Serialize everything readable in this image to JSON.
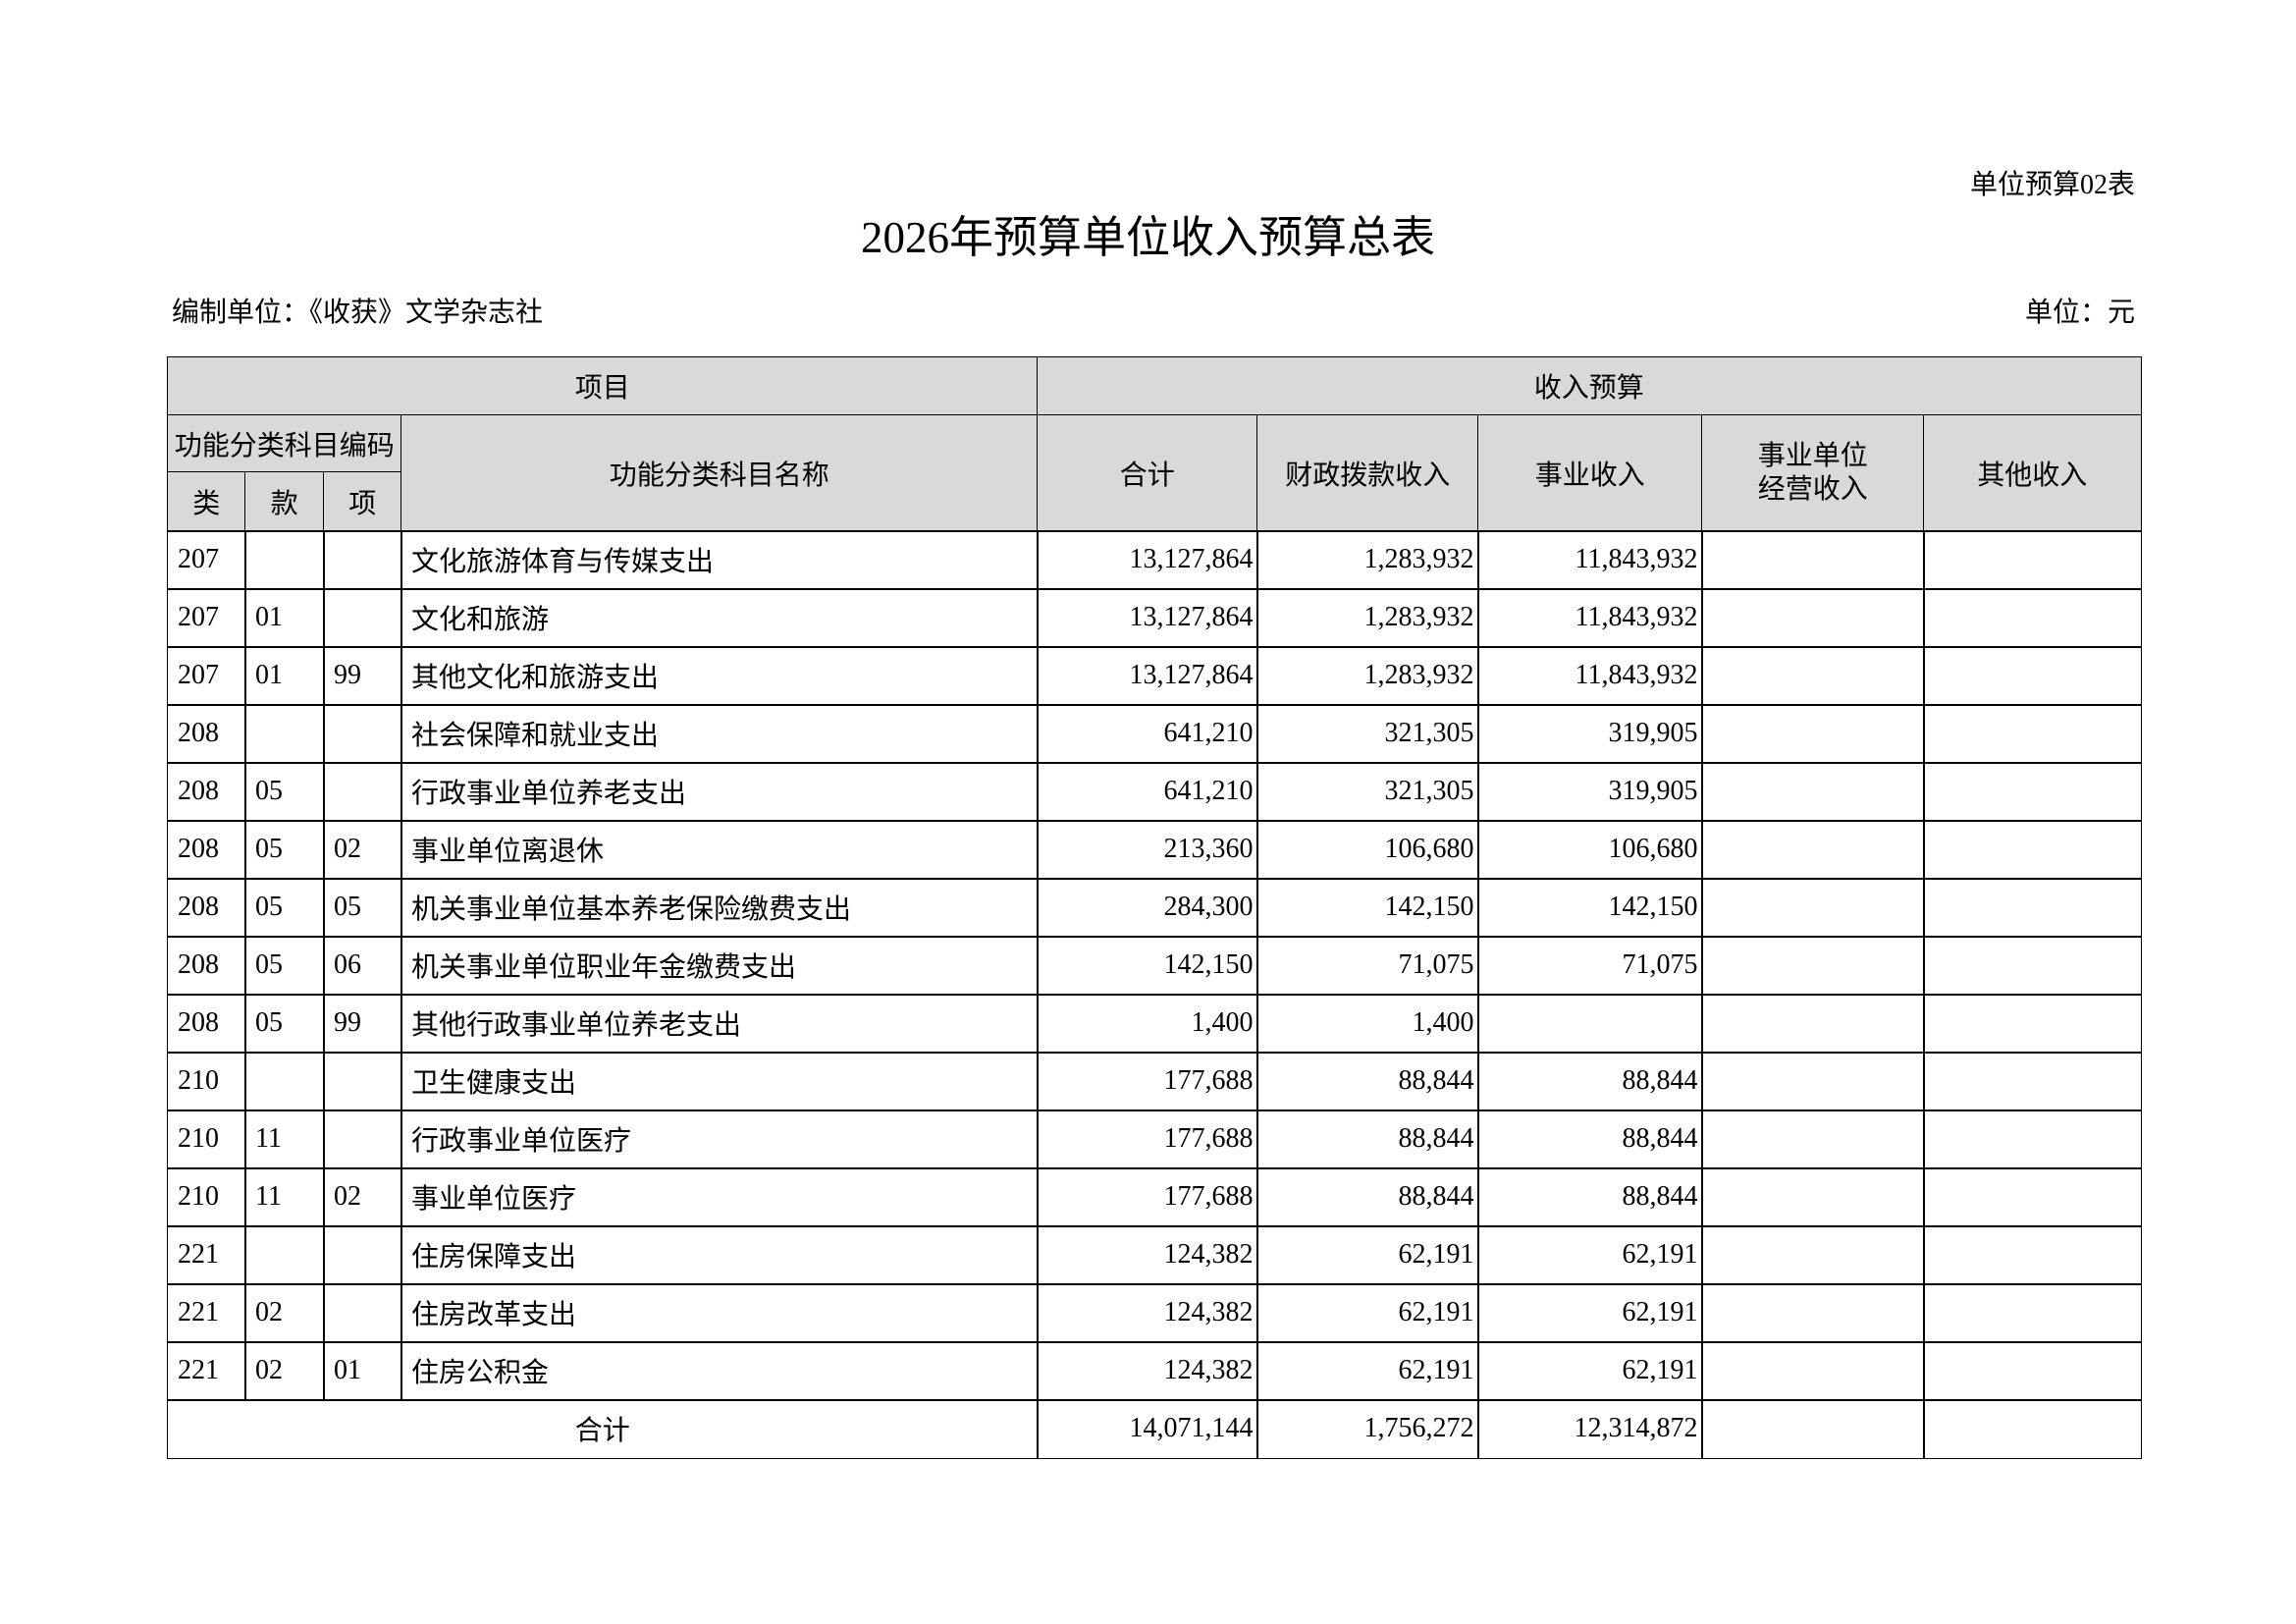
{
  "header": {
    "form_no": "单位预算02表",
    "title": "2026年预算单位收入预算总表",
    "unit_label": "编制单位：《收获》文学杂志社",
    "currency": "单位：元"
  },
  "table": {
    "group_headers": [
      "项目",
      "收入预算"
    ],
    "code_header": "功能分类科目编码",
    "code_columns": [
      "类",
      "款",
      "项"
    ],
    "name_header": "功能分类科目名称",
    "value_headers": [
      "合计",
      "财政拨款收入",
      "事业收入",
      "事业单位经营收入",
      "其他收入"
    ],
    "rows": [
      [
        "207",
        null,
        null,
        "文化旅游体育与传媒支出",
        "13,127,864",
        "1,283,932",
        "11,843,932",
        null,
        null
      ],
      [
        "207",
        "01",
        null,
        "文化和旅游",
        "13,127,864",
        "1,283,932",
        "11,843,932",
        null,
        null
      ],
      [
        "207",
        "01",
        "99",
        "其他文化和旅游支出",
        "13,127,864",
        "1,283,932",
        "11,843,932",
        null,
        null
      ],
      [
        "208",
        null,
        null,
        "社会保障和就业支出",
        "641,210",
        "321,305",
        "319,905",
        null,
        null
      ],
      [
        "208",
        "05",
        null,
        "行政事业单位养老支出",
        "641,210",
        "321,305",
        "319,905",
        null,
        null
      ],
      [
        "208",
        "05",
        "02",
        "事业单位离退休",
        "213,360",
        "106,680",
        "106,680",
        null,
        null
      ],
      [
        "208",
        "05",
        "05",
        "机关事业单位基本养老保险缴费支出",
        "284,300",
        "142,150",
        "142,150",
        null,
        null
      ],
      [
        "208",
        "05",
        "06",
        "机关事业单位职业年金缴费支出",
        "142,150",
        "71,075",
        "71,075",
        null,
        null
      ],
      [
        "208",
        "05",
        "99",
        "其他行政事业单位养老支出",
        "1,400",
        "1,400",
        null,
        null,
        null
      ],
      [
        "210",
        null,
        null,
        "卫生健康支出",
        "177,688",
        "88,844",
        "88,844",
        null,
        null
      ],
      [
        "210",
        "11",
        null,
        "行政事业单位医疗",
        "177,688",
        "88,844",
        "88,844",
        null,
        null
      ],
      [
        "210",
        "11",
        "02",
        "事业单位医疗",
        "177,688",
        "88,844",
        "88,844",
        null,
        null
      ],
      [
        "221",
        null,
        null,
        "住房保障支出",
        "124,382",
        "62,191",
        "62,191",
        null,
        null
      ],
      [
        "221",
        "02",
        null,
        "住房改革支出",
        "124,382",
        "62,191",
        "62,191",
        null,
        null
      ],
      [
        "221",
        "02",
        "01",
        "住房公积金",
        "124,382",
        "62,191",
        "62,191",
        null,
        null
      ]
    ],
    "total_row": {
      "label": "合计",
      "values": [
        "14,071,144",
        "1,756,272",
        "12,314,872",
        null,
        null
      ]
    }
  }
}
